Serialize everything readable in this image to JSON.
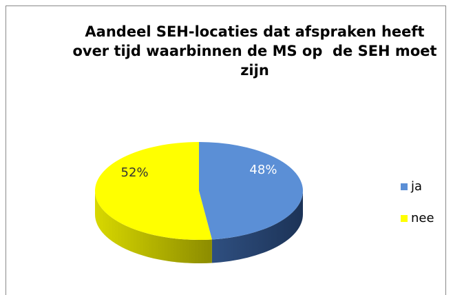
{
  "chart_data": {
    "type": "pie",
    "title": "Aandeel SEH-locaties dat afspraken heeft over tijd waarbinnen de MS op  de SEH moet zijn",
    "categories": [
      "ja",
      "nee"
    ],
    "values": [
      48,
      52
    ],
    "value_labels": [
      "48%",
      "52%"
    ],
    "colors": [
      "#5b8fd6",
      "#ffff00"
    ],
    "legend": "right"
  }
}
